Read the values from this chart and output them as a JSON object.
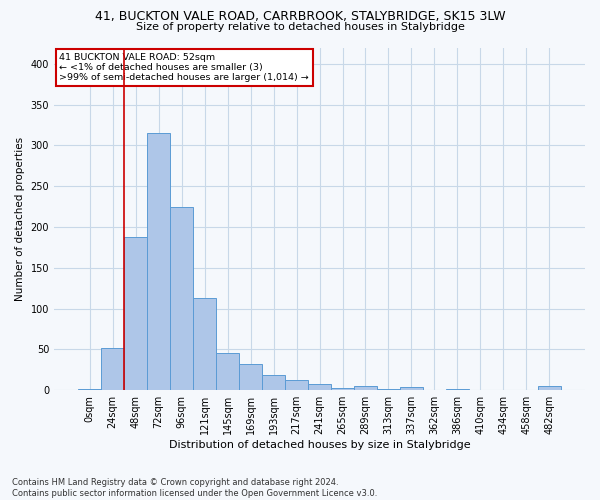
{
  "title": "41, BUCKTON VALE ROAD, CARRBROOK, STALYBRIDGE, SK15 3LW",
  "subtitle": "Size of property relative to detached houses in Stalybridge",
  "xlabel": "Distribution of detached houses by size in Stalybridge",
  "ylabel": "Number of detached properties",
  "bar_labels": [
    "0sqm",
    "24sqm",
    "48sqm",
    "72sqm",
    "96sqm",
    "121sqm",
    "145sqm",
    "169sqm",
    "193sqm",
    "217sqm",
    "241sqm",
    "265sqm",
    "289sqm",
    "313sqm",
    "337sqm",
    "362sqm",
    "386sqm",
    "410sqm",
    "434sqm",
    "458sqm",
    "482sqm"
  ],
  "bar_values": [
    2,
    52,
    188,
    315,
    225,
    113,
    46,
    32,
    19,
    13,
    8,
    3,
    5,
    2,
    4,
    0,
    2,
    0,
    0,
    0,
    5
  ],
  "bar_color": "#aec6e8",
  "bar_edgecolor": "#5b9bd5",
  "property_line_x": 1.5,
  "annotation_line1": "41 BUCKTON VALE ROAD: 52sqm",
  "annotation_line2": "← <1% of detached houses are smaller (3)",
  "annotation_line3": ">99% of semi-detached houses are larger (1,014) →",
  "annotation_box_color": "#ffffff",
  "annotation_box_edgecolor": "#cc0000",
  "red_line_color": "#cc0000",
  "grid_color": "#c8d8e8",
  "background_color": "#f5f8fc",
  "footer_line1": "Contains HM Land Registry data © Crown copyright and database right 2024.",
  "footer_line2": "Contains public sector information licensed under the Open Government Licence v3.0.",
  "ylim": [
    0,
    420
  ],
  "yticks": [
    0,
    50,
    100,
    150,
    200,
    250,
    300,
    350,
    400
  ]
}
